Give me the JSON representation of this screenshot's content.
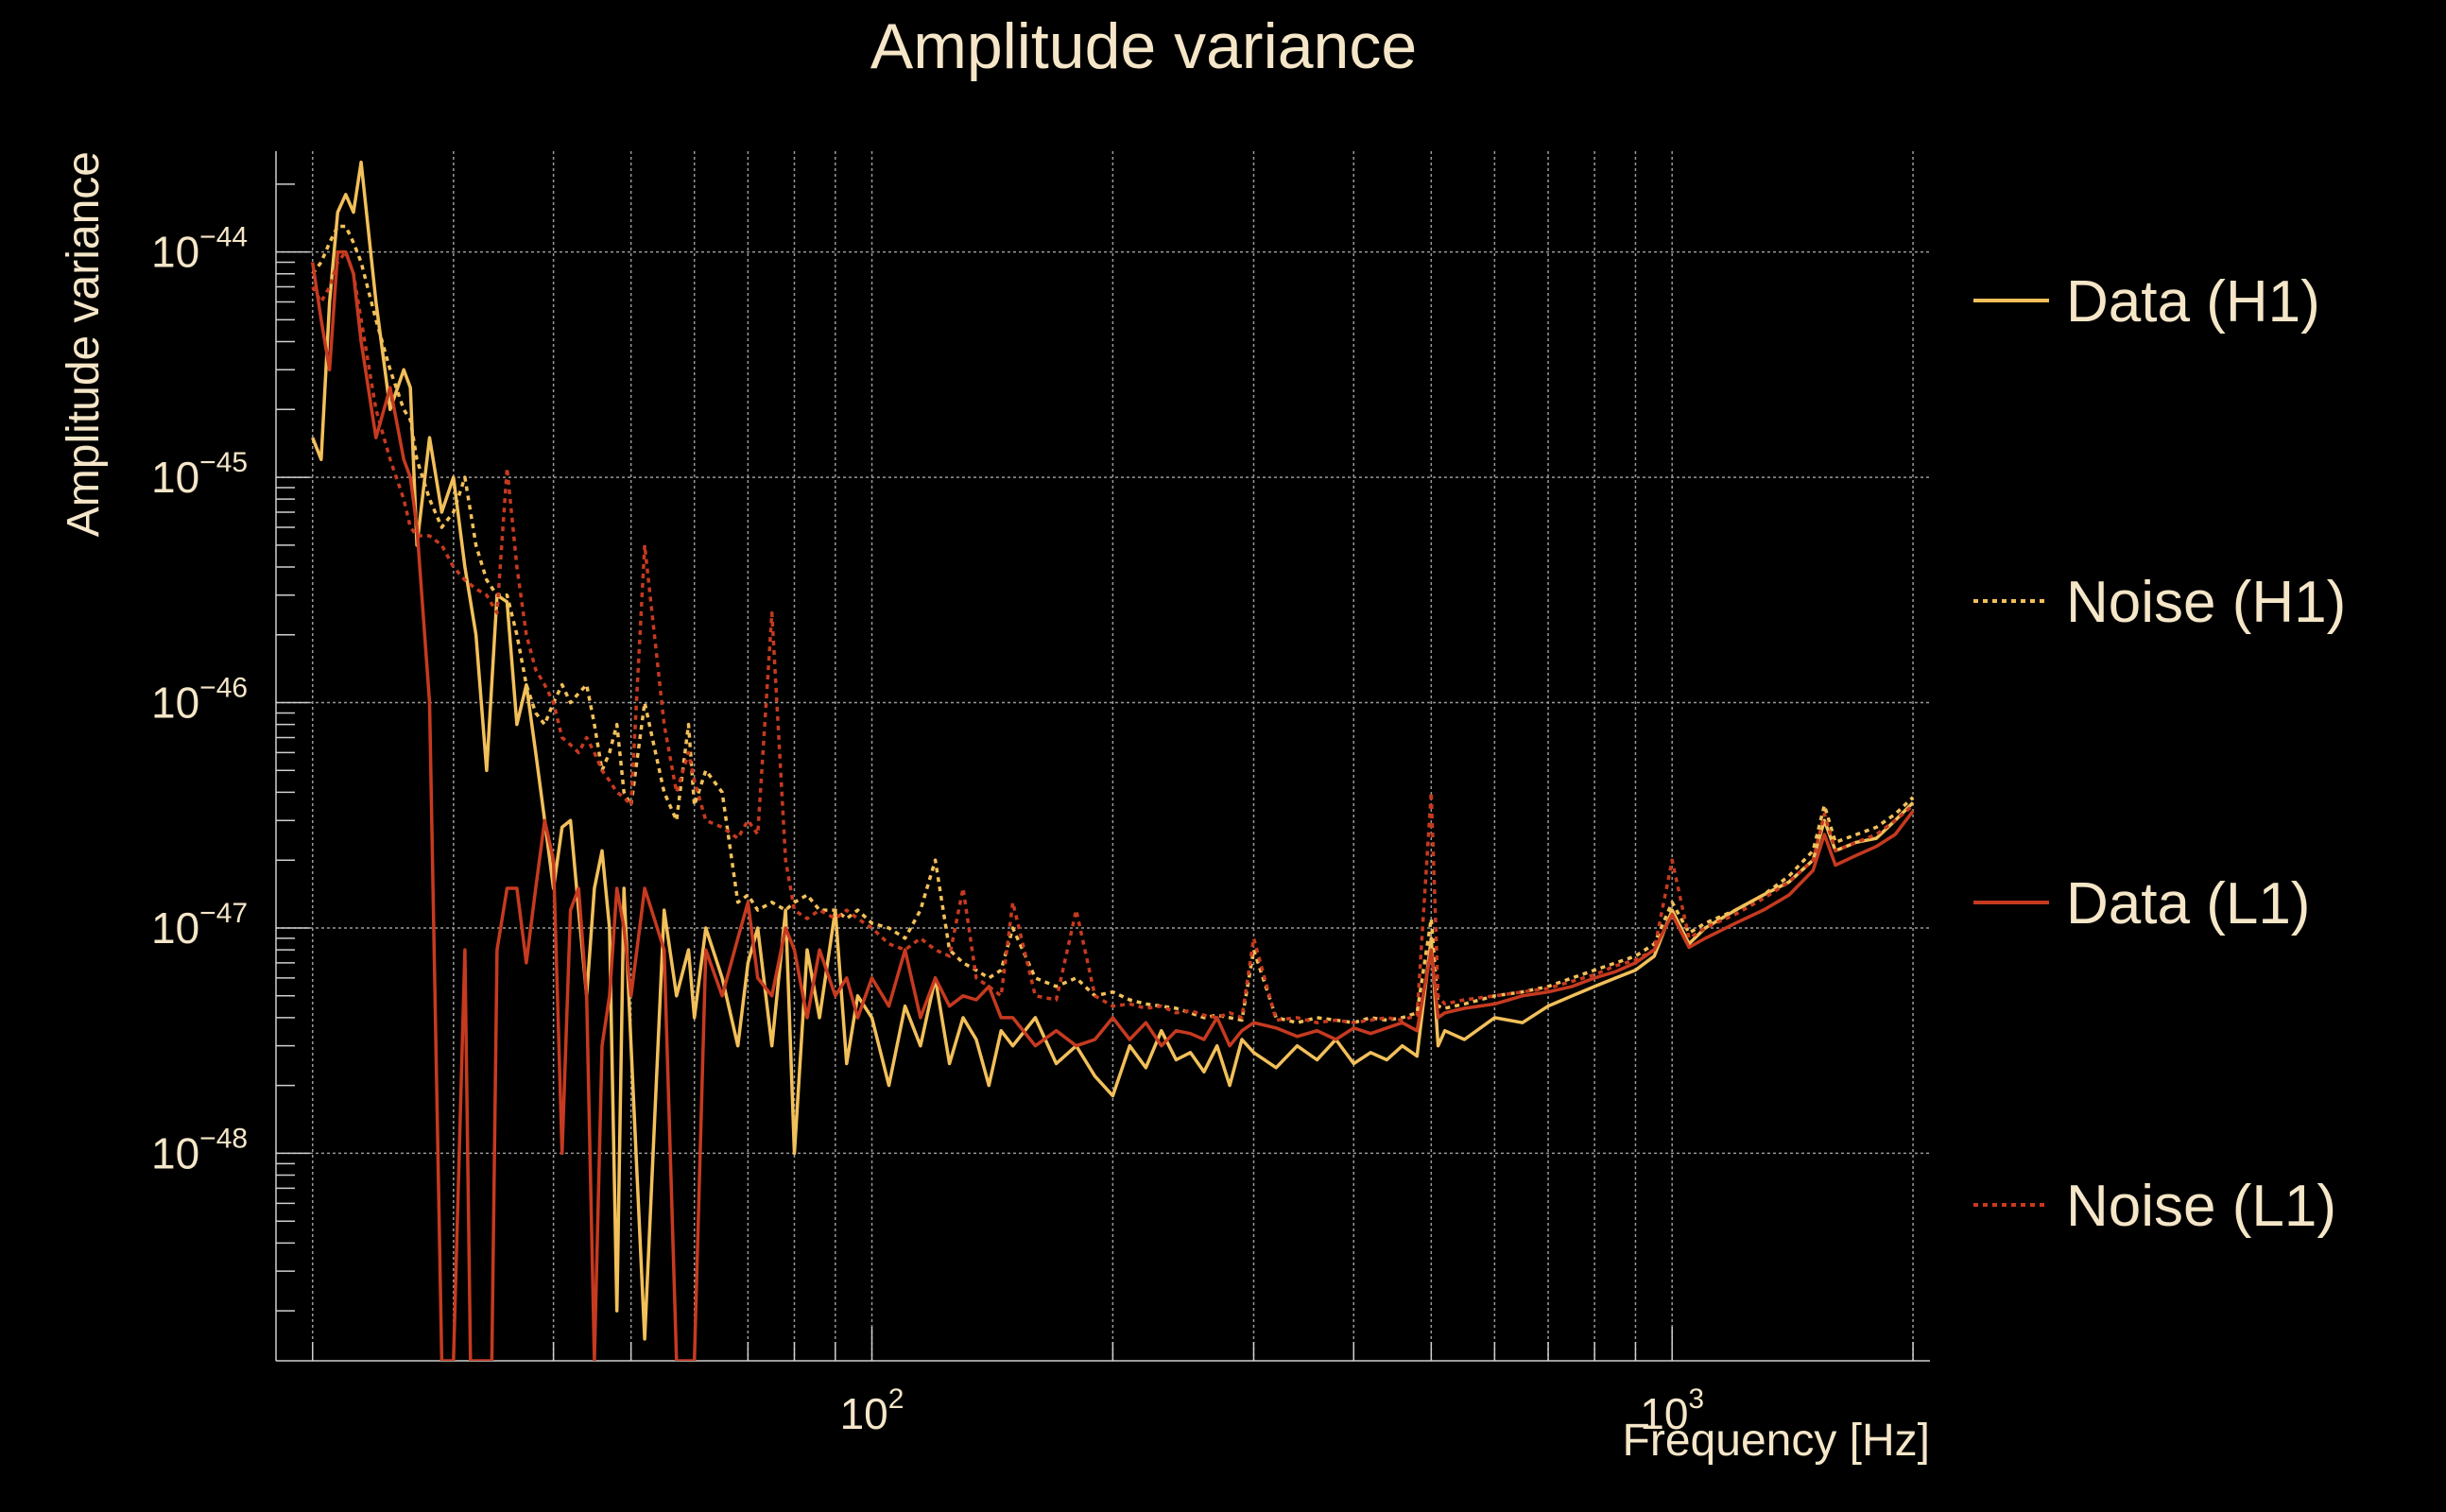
{
  "chart_data": {
    "type": "line",
    "title": "Amplitude variance",
    "xlabel": "Frequency [Hz]",
    "ylabel": "Amplitude variance",
    "x_scale": "log",
    "y_scale": "log",
    "xlim": [
      18,
      2100
    ],
    "ylim": [
      1.2e-49,
      2.8e-44
    ],
    "grid": true,
    "legend": "right",
    "x_ticks": [
      {
        "value": 100,
        "base": "10",
        "exp": "2"
      },
      {
        "value": 1000,
        "base": "10",
        "exp": "3"
      }
    ],
    "y_ticks": [
      {
        "value": 1e-44,
        "base": "10",
        "exp": "−44"
      },
      {
        "value": 1e-45,
        "base": "10",
        "exp": "−45"
      },
      {
        "value": 1e-46,
        "base": "10",
        "exp": "−46"
      },
      {
        "value": 1e-47,
        "base": "10",
        "exp": "−47"
      },
      {
        "value": 1e-48,
        "base": "10",
        "exp": "−48"
      }
    ],
    "series": [
      {
        "name": "Data (H1)",
        "color": "#f2c05a",
        "dash": "solid",
        "x": [
          20,
          20.5,
          21,
          21.5,
          22,
          22.5,
          23,
          24,
          25,
          26,
          26.5,
          27,
          28,
          29,
          30,
          31,
          32,
          33,
          34,
          35,
          36,
          37,
          38,
          39,
          40,
          41,
          42,
          43,
          44,
          45,
          46,
          47,
          48,
          49,
          50,
          52,
          55,
          57,
          59,
          60,
          62,
          65,
          68,
          70,
          72,
          75,
          78,
          80,
          83,
          86,
          90,
          93,
          96,
          100,
          105,
          110,
          115,
          120,
          125,
          130,
          135,
          140,
          145,
          150,
          160,
          170,
          180,
          190,
          200,
          210,
          220,
          230,
          240,
          250,
          260,
          270,
          280,
          290,
          300,
          320,
          340,
          360,
          380,
          400,
          420,
          440,
          460,
          480,
          500,
          510,
          520,
          550,
          600,
          650,
          700,
          750,
          800,
          850,
          900,
          950,
          1000,
          1050,
          1100,
          1200,
          1300,
          1400,
          1500,
          1550,
          1600,
          1700,
          1800,
          1900,
          2000
        ],
        "y": [
          1.5e-45,
          1.2e-45,
          6e-45,
          1.5e-44,
          1.8e-44,
          1.5e-44,
          2.5e-44,
          6e-45,
          2e-45,
          3e-45,
          2.5e-45,
          5e-46,
          1.5e-45,
          7e-46,
          1e-45,
          4e-46,
          2e-46,
          5e-47,
          3e-46,
          2.8e-46,
          8e-47,
          1.2e-46,
          6e-47,
          3e-47,
          1.5e-47,
          2.8e-47,
          3e-47,
          1.2e-47,
          5e-48,
          1.5e-47,
          2.2e-47,
          1e-47,
          2e-49,
          1.5e-47,
          3e-48,
          1.5e-49,
          1.2e-47,
          5e-48,
          8e-48,
          4e-48,
          1e-47,
          6e-48,
          3e-48,
          7e-48,
          1e-47,
          3e-48,
          1.2e-47,
          1e-48,
          8e-48,
          4e-48,
          1.2e-47,
          2.5e-48,
          5e-48,
          4e-48,
          2e-48,
          4.5e-48,
          3e-48,
          6e-48,
          2.5e-48,
          4e-48,
          3.2e-48,
          2e-48,
          3.5e-48,
          3e-48,
          4e-48,
          2.5e-48,
          3e-48,
          2.2e-48,
          1.8e-48,
          3e-48,
          2.4e-48,
          3.5e-48,
          2.6e-48,
          2.8e-48,
          2.3e-48,
          3e-48,
          2e-48,
          3.2e-48,
          2.8e-48,
          2.4e-48,
          3e-48,
          2.6e-48,
          3.2e-48,
          2.5e-48,
          2.8e-48,
          2.6e-48,
          3e-48,
          2.7e-48,
          9e-48,
          3e-48,
          3.5e-48,
          3.2e-48,
          4e-48,
          3.8e-48,
          4.5e-48,
          5e-48,
          5.5e-48,
          6e-48,
          6.5e-48,
          7.5e-48,
          1.2e-47,
          8.5e-48,
          1e-47,
          1.2e-47,
          1.4e-47,
          1.6e-47,
          2e-47,
          3e-47,
          2.2e-47,
          2.4e-47,
          2.5e-47,
          3e-47,
          3.6e-47
        ]
      },
      {
        "name": "Noise (H1)",
        "color": "#f2c05a",
        "dash": "dotted",
        "x": [
          20,
          20.5,
          21,
          21.5,
          22,
          22.5,
          23,
          24,
          25,
          26,
          26.5,
          27,
          28,
          29,
          30,
          31,
          32,
          33,
          34,
          35,
          36,
          37,
          38,
          39,
          40,
          41,
          42,
          43,
          44,
          45,
          46,
          47,
          48,
          49,
          50,
          52,
          55,
          57,
          59,
          60,
          62,
          65,
          68,
          70,
          72,
          75,
          78,
          80,
          83,
          86,
          90,
          93,
          96,
          100,
          105,
          110,
          115,
          120,
          125,
          130,
          135,
          140,
          145,
          150,
          160,
          170,
          180,
          190,
          200,
          210,
          220,
          230,
          240,
          250,
          260,
          270,
          280,
          290,
          300,
          320,
          340,
          360,
          380,
          400,
          420,
          440,
          460,
          480,
          500,
          510,
          520,
          550,
          600,
          650,
          700,
          750,
          800,
          850,
          900,
          950,
          1000,
          1050,
          1100,
          1200,
          1300,
          1400,
          1500,
          1550,
          1600,
          1700,
          1800,
          1900,
          2000
        ],
        "y": [
          8e-45,
          9e-45,
          1.1e-44,
          1.3e-44,
          1.3e-44,
          1.1e-44,
          9e-45,
          5e-45,
          3e-45,
          2e-45,
          1.8e-45,
          1.2e-45,
          8e-46,
          6e-46,
          7e-46,
          1e-45,
          5e-46,
          3.5e-46,
          3e-46,
          3e-46,
          2e-46,
          1.2e-46,
          9e-47,
          8e-47,
          1e-46,
          1.2e-46,
          1e-46,
          1.1e-46,
          1.2e-46,
          8e-47,
          5e-47,
          6e-47,
          8e-47,
          4e-47,
          3.5e-47,
          1e-46,
          4e-47,
          3e-47,
          8e-47,
          3.5e-47,
          5e-47,
          4e-47,
          1.3e-47,
          1.4e-47,
          1.2e-47,
          1.3e-47,
          1.2e-47,
          1.3e-47,
          1.4e-47,
          1.2e-47,
          1.2e-47,
          1.1e-47,
          1.2e-47,
          1.05e-47,
          1e-47,
          9e-48,
          1.2e-47,
          2e-47,
          8e-48,
          7e-48,
          6.5e-48,
          6e-48,
          6.5e-48,
          1e-47,
          6e-48,
          5.5e-48,
          6e-48,
          5e-48,
          5.2e-48,
          4.8e-48,
          4.6e-48,
          4.5e-48,
          4.4e-48,
          4.2e-48,
          4e-48,
          4.1e-48,
          4e-48,
          3.9e-48,
          8e-48,
          4e-48,
          3.8e-48,
          4e-48,
          3.9e-48,
          3.8e-48,
          4e-48,
          3.9e-48,
          4e-48,
          4.2e-48,
          1.1e-47,
          4.5e-48,
          4.4e-48,
          4.6e-48,
          5e-48,
          5.2e-48,
          5.5e-48,
          6e-48,
          6.5e-48,
          7e-48,
          7.5e-48,
          8.5e-48,
          1.3e-47,
          9.5e-48,
          1.05e-47,
          1.2e-47,
          1.4e-47,
          1.7e-47,
          2.2e-47,
          3.5e-47,
          2.4e-47,
          2.6e-47,
          2.8e-47,
          3.2e-47,
          3.8e-47
        ]
      },
      {
        "name": "Data (L1)",
        "color": "#c63a20",
        "dash": "solid",
        "x": [
          20,
          20.5,
          21,
          21.5,
          22,
          22.5,
          23,
          24,
          25,
          26,
          26.5,
          27,
          28,
          29,
          30,
          31,
          31.5,
          32,
          33,
          33.5,
          34,
          35,
          36,
          37,
          38,
          39,
          40,
          41,
          42,
          43,
          44,
          45,
          46,
          47,
          48,
          49,
          50,
          52,
          55,
          57,
          59,
          60,
          62,
          65,
          68,
          70,
          72,
          75,
          78,
          80,
          83,
          86,
          90,
          93,
          96,
          100,
          105,
          110,
          115,
          120,
          125,
          130,
          135,
          140,
          145,
          150,
          160,
          170,
          180,
          190,
          200,
          210,
          220,
          230,
          240,
          250,
          260,
          270,
          280,
          290,
          300,
          320,
          340,
          360,
          380,
          400,
          420,
          440,
          460,
          480,
          500,
          510,
          520,
          550,
          600,
          650,
          700,
          750,
          800,
          850,
          900,
          950,
          1000,
          1050,
          1100,
          1200,
          1300,
          1400,
          1500,
          1550,
          1600,
          1700,
          1800,
          1900,
          2000
        ],
        "y": [
          9e-45,
          5e-45,
          3e-45,
          1e-44,
          1e-44,
          8e-45,
          4e-45,
          1.5e-45,
          2.5e-45,
          1.2e-45,
          1e-45,
          6e-46,
          1e-46,
          1.2e-49,
          1.2e-49,
          8e-48,
          1.2e-49,
          1.2e-49,
          1.2e-49,
          1.2e-49,
          8e-48,
          1.5e-47,
          1.5e-47,
          7e-48,
          1.5e-47,
          3e-47,
          2e-47,
          1e-48,
          1.2e-47,
          1.5e-47,
          5e-48,
          1.2e-49,
          3e-48,
          5e-48,
          1.5e-47,
          1e-47,
          5e-48,
          1.5e-47,
          8e-48,
          1.2e-49,
          1.2e-49,
          1.2e-49,
          8e-48,
          5e-48,
          9e-48,
          1.3e-47,
          6e-48,
          5e-48,
          1e-47,
          8e-48,
          4e-48,
          8e-48,
          5e-48,
          6e-48,
          4e-48,
          6e-48,
          4.5e-48,
          8e-48,
          4e-48,
          6e-48,
          4.5e-48,
          5e-48,
          4.8e-48,
          5.5e-48,
          4e-48,
          4e-48,
          3e-48,
          3.5e-48,
          3e-48,
          3.2e-48,
          4e-48,
          3.2e-48,
          3.8e-48,
          3e-48,
          3.5e-48,
          3.4e-48,
          3.2e-48,
          4e-48,
          3e-48,
          3.5e-48,
          3.8e-48,
          3.6e-48,
          3.3e-48,
          3.5e-48,
          3.2e-48,
          3.6e-48,
          3.4e-48,
          3.6e-48,
          3.8e-48,
          3.5e-48,
          8e-48,
          4e-48,
          4.2e-48,
          4.4e-48,
          4.6e-48,
          5e-48,
          5.2e-48,
          5.5e-48,
          6e-48,
          6.4e-48,
          7e-48,
          8e-48,
          1.15e-47,
          8.2e-48,
          9e-48,
          1.05e-47,
          1.2e-47,
          1.4e-47,
          1.8e-47,
          2.6e-47,
          1.9e-47,
          2.1e-47,
          2.3e-47,
          2.6e-47,
          3.3e-47
        ]
      },
      {
        "name": "Noise (L1)",
        "color": "#c63a20",
        "dash": "dotted",
        "x": [
          20,
          20.5,
          21,
          21.5,
          22,
          22.5,
          23,
          24,
          25,
          26,
          26.5,
          27,
          28,
          29,
          30,
          31,
          32,
          33,
          34,
          35,
          36,
          37,
          38,
          39,
          40,
          41,
          42,
          43,
          44,
          45,
          46,
          47,
          48,
          49,
          50,
          52,
          55,
          57,
          59,
          60,
          62,
          65,
          68,
          70,
          72,
          75,
          78,
          80,
          83,
          86,
          90,
          93,
          96,
          100,
          105,
          110,
          115,
          120,
          125,
          130,
          135,
          140,
          145,
          150,
          160,
          170,
          180,
          190,
          200,
          210,
          220,
          230,
          240,
          250,
          260,
          270,
          280,
          290,
          300,
          320,
          340,
          360,
          380,
          400,
          420,
          440,
          460,
          480,
          500,
          510,
          520,
          550,
          600,
          650,
          700,
          750,
          800,
          850,
          900,
          950,
          1000,
          1050,
          1100,
          1200,
          1300,
          1400,
          1500,
          1550,
          1600,
          1700,
          1800,
          1900,
          2000
        ],
        "y": [
          7e-45,
          6e-45,
          7e-45,
          9e-45,
          1e-44,
          8e-45,
          5e-45,
          2e-45,
          1.2e-45,
          8e-46,
          6e-46,
          5.5e-46,
          5.5e-46,
          5e-46,
          4e-46,
          3.5e-46,
          3.2e-46,
          3e-46,
          2.5e-46,
          1.1e-45,
          4e-46,
          2e-46,
          1.4e-46,
          1.2e-46,
          1e-46,
          7e-47,
          6.5e-47,
          6e-47,
          7e-47,
          6e-47,
          5e-47,
          4.5e-47,
          4e-47,
          3.8e-47,
          3.5e-47,
          5e-46,
          8e-47,
          4e-47,
          6e-47,
          4.5e-47,
          3e-47,
          2.8e-47,
          2.5e-47,
          3e-47,
          2.6e-47,
          2.5e-46,
          2e-47,
          1.2e-47,
          1.1e-47,
          1.2e-47,
          1.1e-47,
          1.2e-47,
          1.1e-47,
          1e-47,
          8.5e-48,
          8e-48,
          9e-48,
          8e-48,
          7.5e-48,
          1.5e-47,
          6e-48,
          5.5e-48,
          5e-48,
          1.3e-47,
          5e-48,
          4.8e-48,
          1.2e-47,
          5e-48,
          4.5e-48,
          4.6e-48,
          4.4e-48,
          4.5e-48,
          4.2e-48,
          4.3e-48,
          4.1e-48,
          4e-48,
          4.2e-48,
          4e-48,
          9e-48,
          3.9e-48,
          4e-48,
          3.8e-48,
          3.9e-48,
          3.8e-48,
          3.9e-48,
          4e-48,
          3.9e-48,
          4.1e-48,
          4e-47,
          5e-48,
          4.6e-48,
          4.8e-48,
          5e-48,
          5.2e-48,
          5.4e-48,
          5.8e-48,
          6.2e-48,
          6.8e-48,
          7.2e-48,
          8e-48,
          2e-47,
          9e-48,
          1e-47,
          1.15e-47,
          1.35e-47,
          1.6e-47,
          2e-47,
          3.2e-47,
          2.2e-47,
          2.4e-47,
          2.6e-47,
          3e-47,
          3.5e-47
        ]
      }
    ]
  }
}
